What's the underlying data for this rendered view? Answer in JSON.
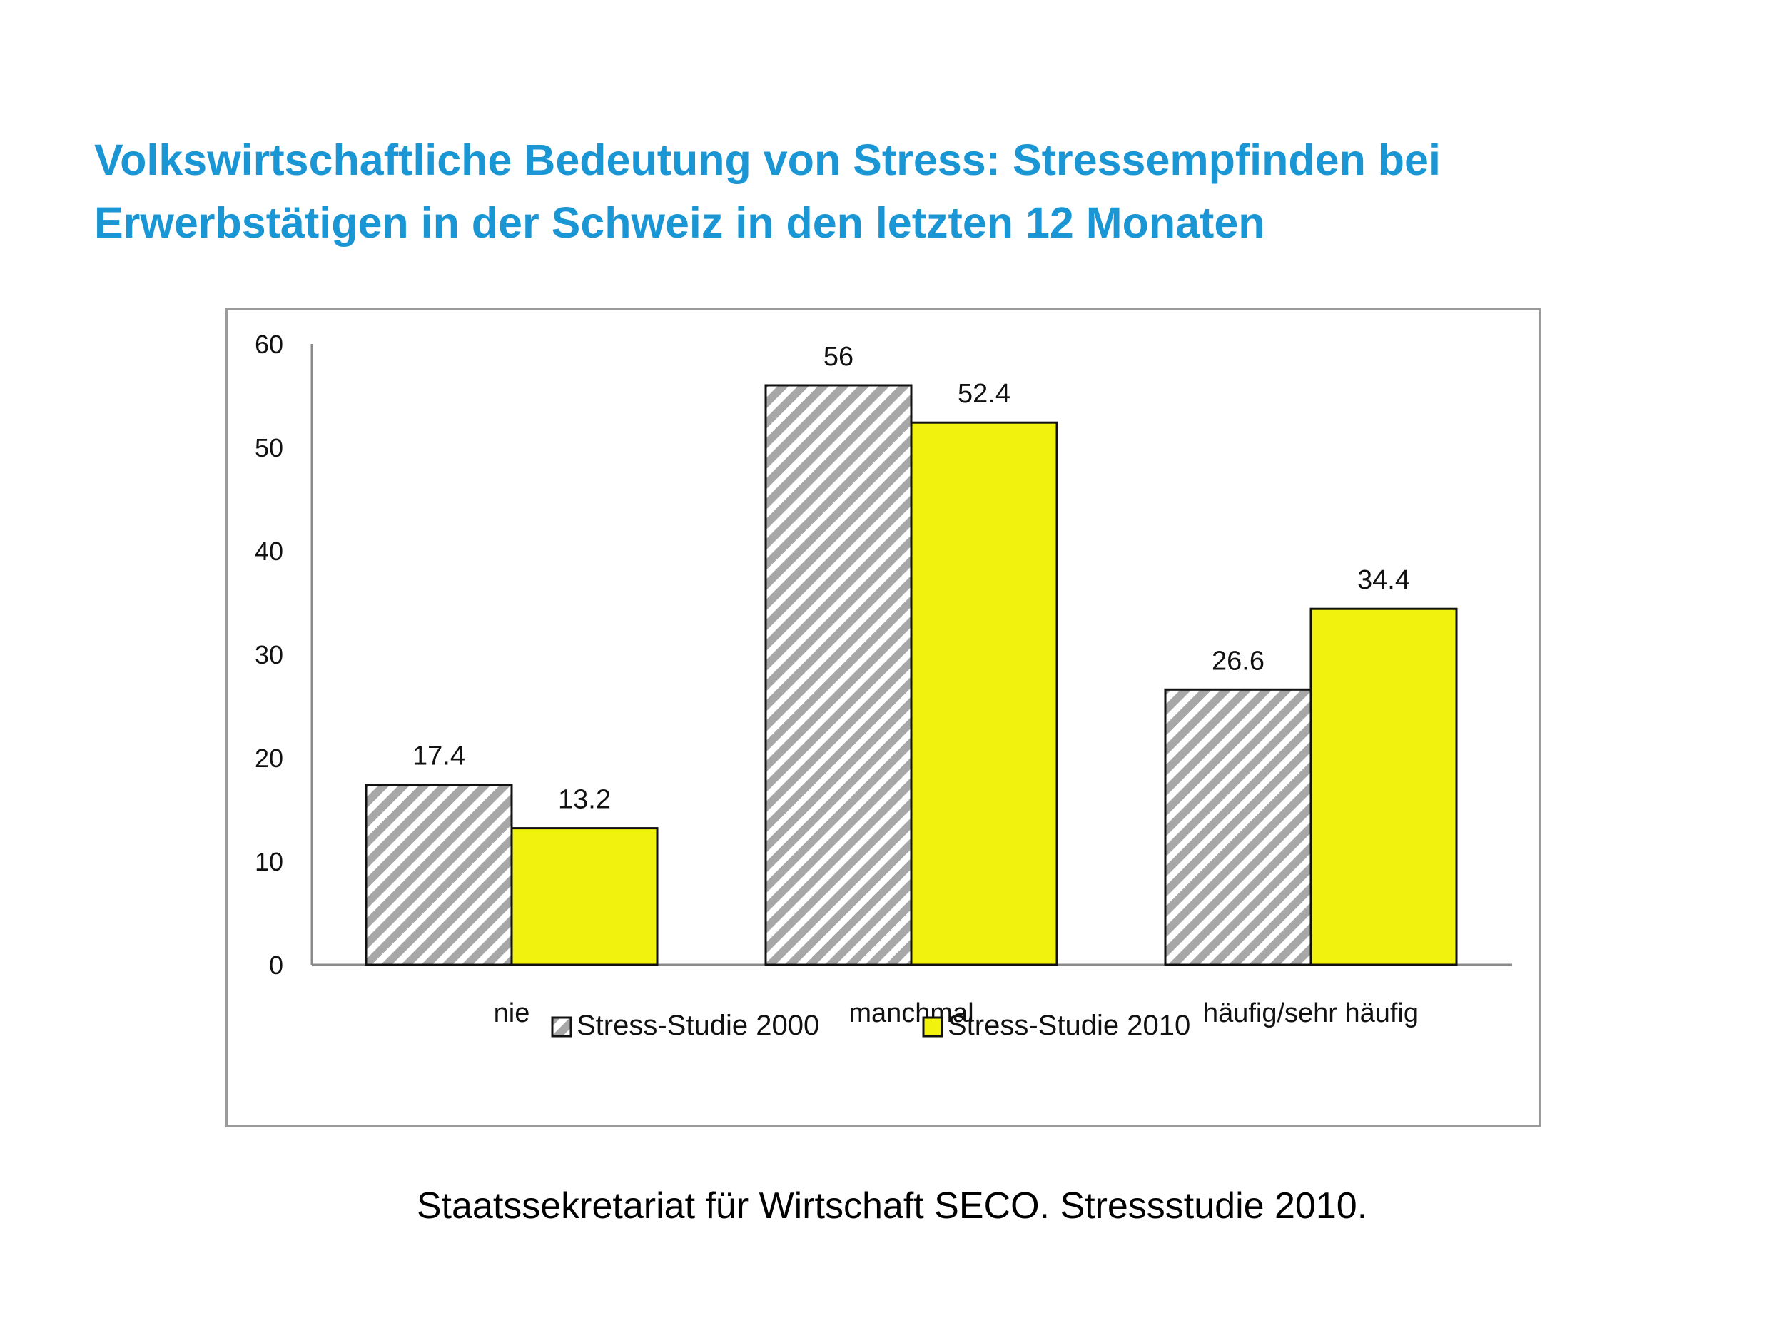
{
  "title": {
    "line1": "Volkswirtschaftliche Bedeutung von Stress: Stressempfinden bei",
    "line2": "Erwerbstätigen in der Schweiz in den letzten 12 Monaten"
  },
  "source": "Staatssekretariat für Wirtschaft SECO. Stressstudie 2010.",
  "chart_data": {
    "type": "bar",
    "categories": [
      "nie",
      "manchmal",
      "häufig/sehr häufig"
    ],
    "series": [
      {
        "name": "Stress-Studie 2000",
        "values": [
          17.4,
          56,
          26.6
        ],
        "labels": [
          "17.4",
          "56",
          "26.6"
        ],
        "fill": "hatched-gray"
      },
      {
        "name": "Stress-Studie 2010",
        "values": [
          13.2,
          52.4,
          34.4
        ],
        "labels": [
          "13.2",
          "52.4",
          "34.4"
        ],
        "fill": "#f2f20f"
      }
    ],
    "yticks": [
      "0",
      "10",
      "20",
      "30",
      "40",
      "50",
      "60"
    ],
    "ylim": [
      0,
      60
    ],
    "xlabel": "",
    "ylabel": "",
    "title": "",
    "grid": false,
    "legend": "bottom"
  },
  "colors": {
    "title": "#1a96d4",
    "bar_2010": "#f2f20f",
    "hatch_stripe": "#a7a7a7",
    "frame": "#9b9b9b"
  }
}
